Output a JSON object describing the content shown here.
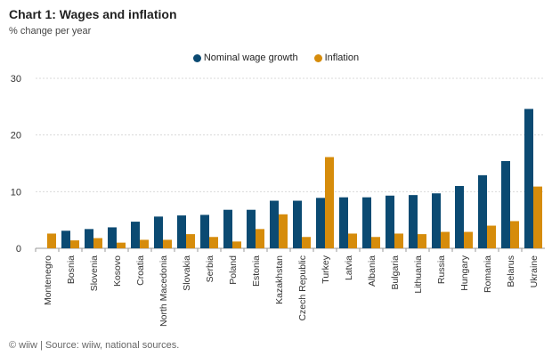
{
  "title": "Chart 1: Wages and inflation",
  "subtitle": "% change per year",
  "footer": "© wiiw | Source: wiiw, national sources.",
  "colors": {
    "wages": "#0b4a72",
    "inflation": "#d68c0b",
    "grid": "#d9d9d9",
    "axis": "#999999"
  },
  "chart_data": {
    "type": "bar",
    "title": "Chart 1: Wages and inflation",
    "subtitle": "% change per year",
    "categories": [
      "Montenegro",
      "Bosnia",
      "Slovenia",
      "Kosovo",
      "Croatia",
      "North Macedonia",
      "Slovakia",
      "Serbia",
      "Poland",
      "Estonia",
      "Kazakhstan",
      "Czech Republic",
      "Turkey",
      "Latvia",
      "Albania",
      "Bulgaria",
      "Lithuania",
      "Russia",
      "Hungary",
      "Romania",
      "Belarus",
      "Ukraine"
    ],
    "series": [
      {
        "name": "Nominal wage growth",
        "color": "#0b4a72",
        "values": [
          null,
          3.1,
          3.4,
          3.7,
          4.7,
          5.6,
          5.8,
          5.9,
          6.8,
          6.8,
          8.4,
          8.4,
          8.9,
          9.0,
          9.0,
          9.3,
          9.4,
          9.7,
          11.0,
          12.9,
          15.4,
          24.6
        ]
      },
      {
        "name": "Inflation",
        "color": "#d68c0b",
        "values": [
          2.6,
          1.4,
          1.8,
          1.0,
          1.5,
          1.5,
          2.5,
          2.0,
          1.2,
          3.4,
          6.0,
          2.0,
          16.1,
          2.6,
          2.0,
          2.6,
          2.5,
          2.9,
          2.9,
          4.0,
          4.8,
          10.9
        ]
      }
    ],
    "ylim": [
      0,
      30
    ],
    "yticks": [
      0,
      10,
      20,
      30
    ],
    "grid": true,
    "legend": "top-center"
  }
}
